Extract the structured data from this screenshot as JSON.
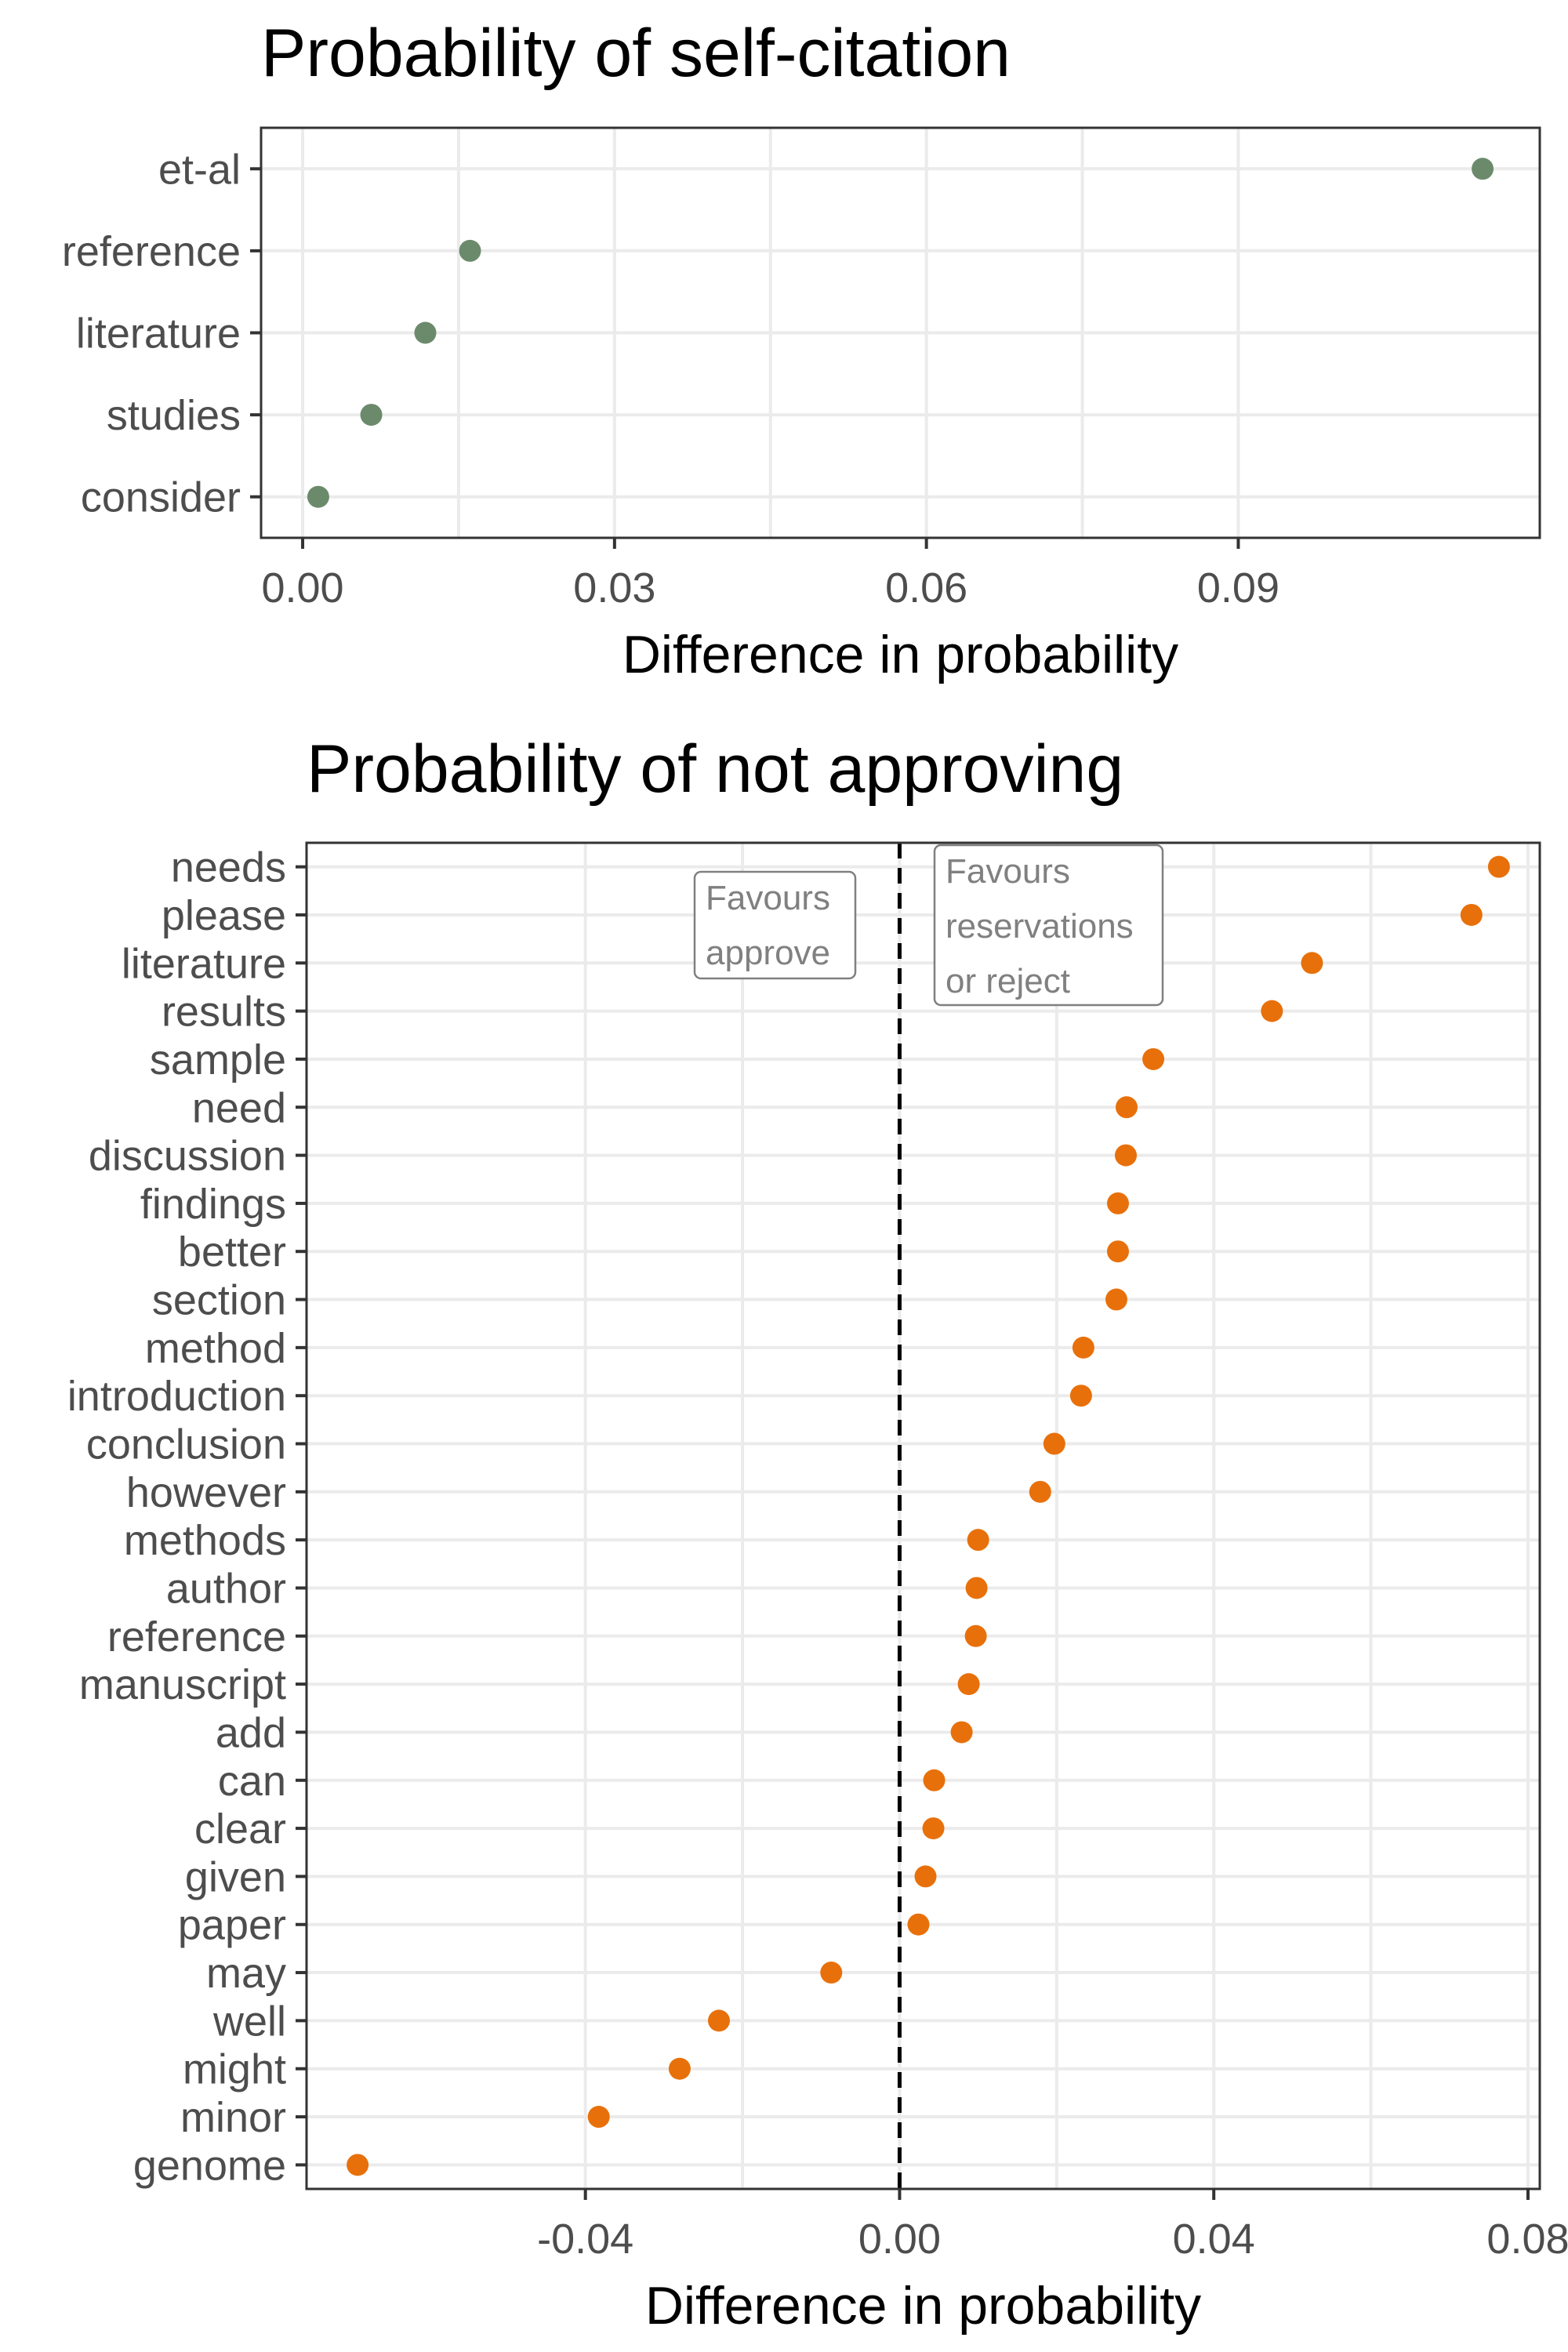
{
  "chart_data": [
    {
      "type": "scatter",
      "title": "Probability of self-citation",
      "xlabel": "Difference in probability",
      "ylabel": "",
      "xlim": [
        -0.004,
        0.119
      ],
      "xticks": [
        0.0,
        0.03,
        0.06,
        0.09
      ],
      "xtick_labels": [
        "0.00",
        "0.03",
        "0.06",
        "0.09"
      ],
      "grid": true,
      "color": "#6b8a6b",
      "categories": [
        "et-al",
        "reference",
        "literature",
        "studies",
        "consider"
      ],
      "values": [
        0.1135,
        0.0161,
        0.0118,
        0.0066,
        0.0015
      ]
    },
    {
      "type": "scatter",
      "title": "Probability of not approving",
      "xlabel": "Difference in probability",
      "ylabel": "",
      "xlim": [
        -0.0755,
        0.0815
      ],
      "xticks": [
        -0.04,
        0.0,
        0.04,
        0.08
      ],
      "xtick_labels": [
        "-0.04",
        "0.00",
        "0.04",
        "0.08"
      ],
      "grid": true,
      "color": "#e8700a",
      "reference_line": 0.0,
      "annotations": [
        {
          "lines": [
            "Favours",
            "approve"
          ]
        },
        {
          "lines": [
            "Favours",
            "reservations",
            "or reject"
          ]
        }
      ],
      "categories": [
        "needs",
        "please",
        "literature",
        "results",
        "sample",
        "need",
        "discussion",
        "findings",
        "better",
        "section",
        "method",
        "introduction",
        "conclusion",
        "however",
        "methods",
        "author",
        "reference",
        "manuscript",
        "add",
        "can",
        "clear",
        "given",
        "paper",
        "may",
        "well",
        "might",
        "minor",
        "genome"
      ],
      "values": [
        0.0763,
        0.0728,
        0.0525,
        0.0474,
        0.0323,
        0.0289,
        0.0288,
        0.0278,
        0.0278,
        0.0276,
        0.0234,
        0.0231,
        0.0197,
        0.0179,
        0.01,
        0.0098,
        0.0097,
        0.0088,
        0.0079,
        0.0044,
        0.0043,
        0.0033,
        0.0024,
        -0.0087,
        -0.023,
        -0.028,
        -0.0383,
        -0.069
      ]
    }
  ]
}
